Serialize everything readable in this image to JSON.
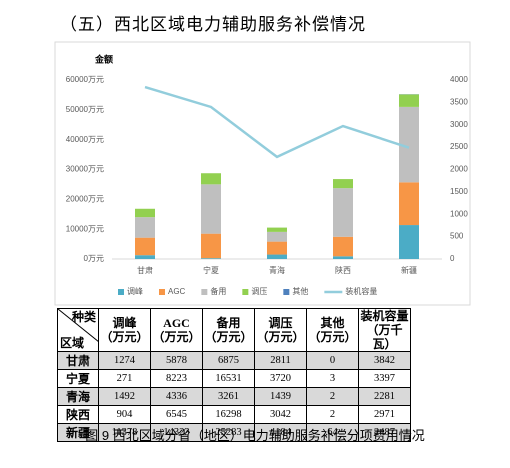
{
  "heading": "（五）西北区域电力辅助服务补偿情况",
  "chart_data": {
    "type": "bar",
    "stacked": true,
    "y_label": "金额",
    "categories": [
      "甘肃",
      "宁夏",
      "青海",
      "陕西",
      "新疆"
    ],
    "series": [
      {
        "name": "调峰",
        "color": "#4bacc6",
        "values": [
          1274,
          271,
          1492,
          904,
          11378
        ]
      },
      {
        "name": "AGC",
        "color": "#f79646",
        "values": [
          5878,
          8223,
          4336,
          6545,
          14323
        ]
      },
      {
        "name": "备用",
        "color": "#bfbfbf",
        "values": [
          6875,
          16531,
          3261,
          16298,
          25283
        ]
      },
      {
        "name": "调压",
        "color": "#92d050",
        "values": [
          2811,
          3720,
          1439,
          3042,
          4184
        ]
      },
      {
        "name": "其他",
        "color": "#4f81bd",
        "values": [
          0,
          3,
          2,
          2,
          64
        ]
      },
      {
        "name": "装机容量",
        "color": "#92cddc",
        "type": "line",
        "axis": "y2",
        "values": [
          3842,
          3397,
          2281,
          2971,
          2487
        ]
      }
    ],
    "ylim": [
      0,
      60000
    ],
    "yticks": [
      {
        "value": 0,
        "label": "0万元"
      },
      {
        "value": 10000,
        "label": "10000万元"
      },
      {
        "value": 20000,
        "label": "20000万元"
      },
      {
        "value": 30000,
        "label": "30000万元"
      },
      {
        "value": 40000,
        "label": "40000万元"
      },
      {
        "value": 50000,
        "label": "50000万元"
      },
      {
        "value": 60000,
        "label": "60000万元"
      }
    ],
    "y2lim": [
      0,
      4000
    ],
    "y2ticks": [
      0,
      500,
      1000,
      1500,
      2000,
      2500,
      3000,
      3500,
      4000
    ],
    "grid": false,
    "legend": "bottom"
  },
  "table": {
    "corner_top": "种类",
    "corner_bottom": "区域",
    "units": [
      "（万元）",
      "（万元）",
      "（万元）",
      "（万元）",
      "（万元）",
      "（万千瓦）"
    ]
  },
  "caption": "图 9 西北区域分省（地区）电力辅助服务补偿分项费用情况"
}
